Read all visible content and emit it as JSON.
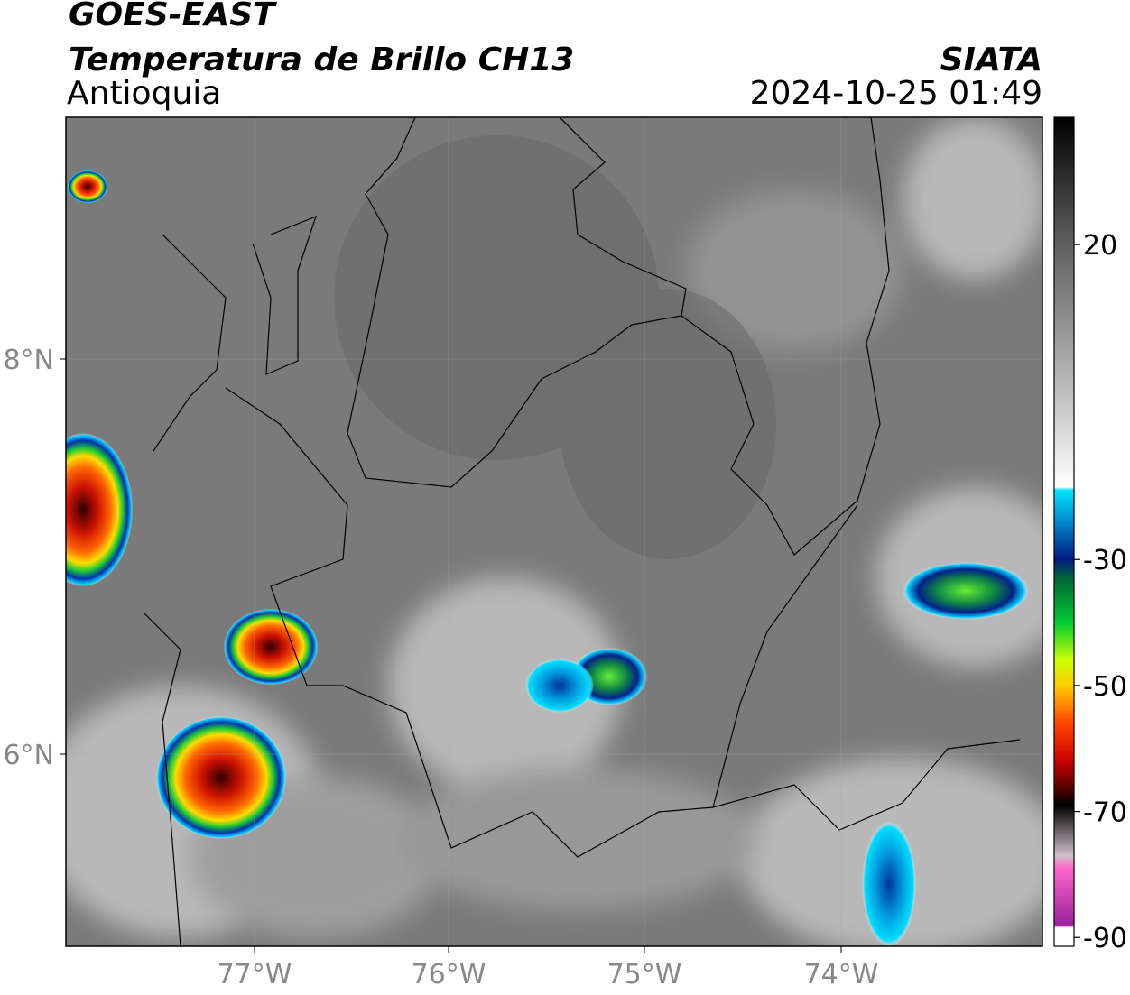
{
  "header": {
    "satellite": "GOES-EAST",
    "product": "Temperatura de Brillo CH13",
    "region": "Antioquia",
    "agency": "SIATA",
    "datetime": "2024-10-25 01:49"
  },
  "map": {
    "lon_ticks": [
      "77°W",
      "76°W",
      "75°W",
      "74°W"
    ],
    "lat_ticks": [
      "8°N",
      "6°N"
    ]
  },
  "colorbar": {
    "lim": [
      -91.4,
      40.2
    ],
    "ticks": [
      20,
      -30,
      -50,
      -70,
      -90
    ],
    "stops": [
      {
        "value": 40.2,
        "color": "#000000"
      },
      {
        "value": 20,
        "color": "#606060"
      },
      {
        "value": 0,
        "color": "#b0b0b0"
      },
      {
        "value": -18.5,
        "color": "#ffffff"
      },
      {
        "value": -19,
        "color": "#00e5ff"
      },
      {
        "value": -24,
        "color": "#0088cc"
      },
      {
        "value": -30,
        "color": "#001a80"
      },
      {
        "value": -33,
        "color": "#006633"
      },
      {
        "value": -40,
        "color": "#00cc33"
      },
      {
        "value": -46,
        "color": "#ccff00"
      },
      {
        "value": -50,
        "color": "#ffcc00"
      },
      {
        "value": -56,
        "color": "#ff4400"
      },
      {
        "value": -62,
        "color": "#cc0000"
      },
      {
        "value": -67,
        "color": "#400000"
      },
      {
        "value": -69,
        "color": "#000000"
      },
      {
        "value": -77,
        "color": "#d0c0c8"
      },
      {
        "value": -79,
        "color": "#ff66cc"
      },
      {
        "value": -88,
        "color": "#992299"
      },
      {
        "value": -88.5,
        "color": "#ffffff"
      },
      {
        "value": -91.4,
        "color": "#ffffff"
      }
    ]
  }
}
